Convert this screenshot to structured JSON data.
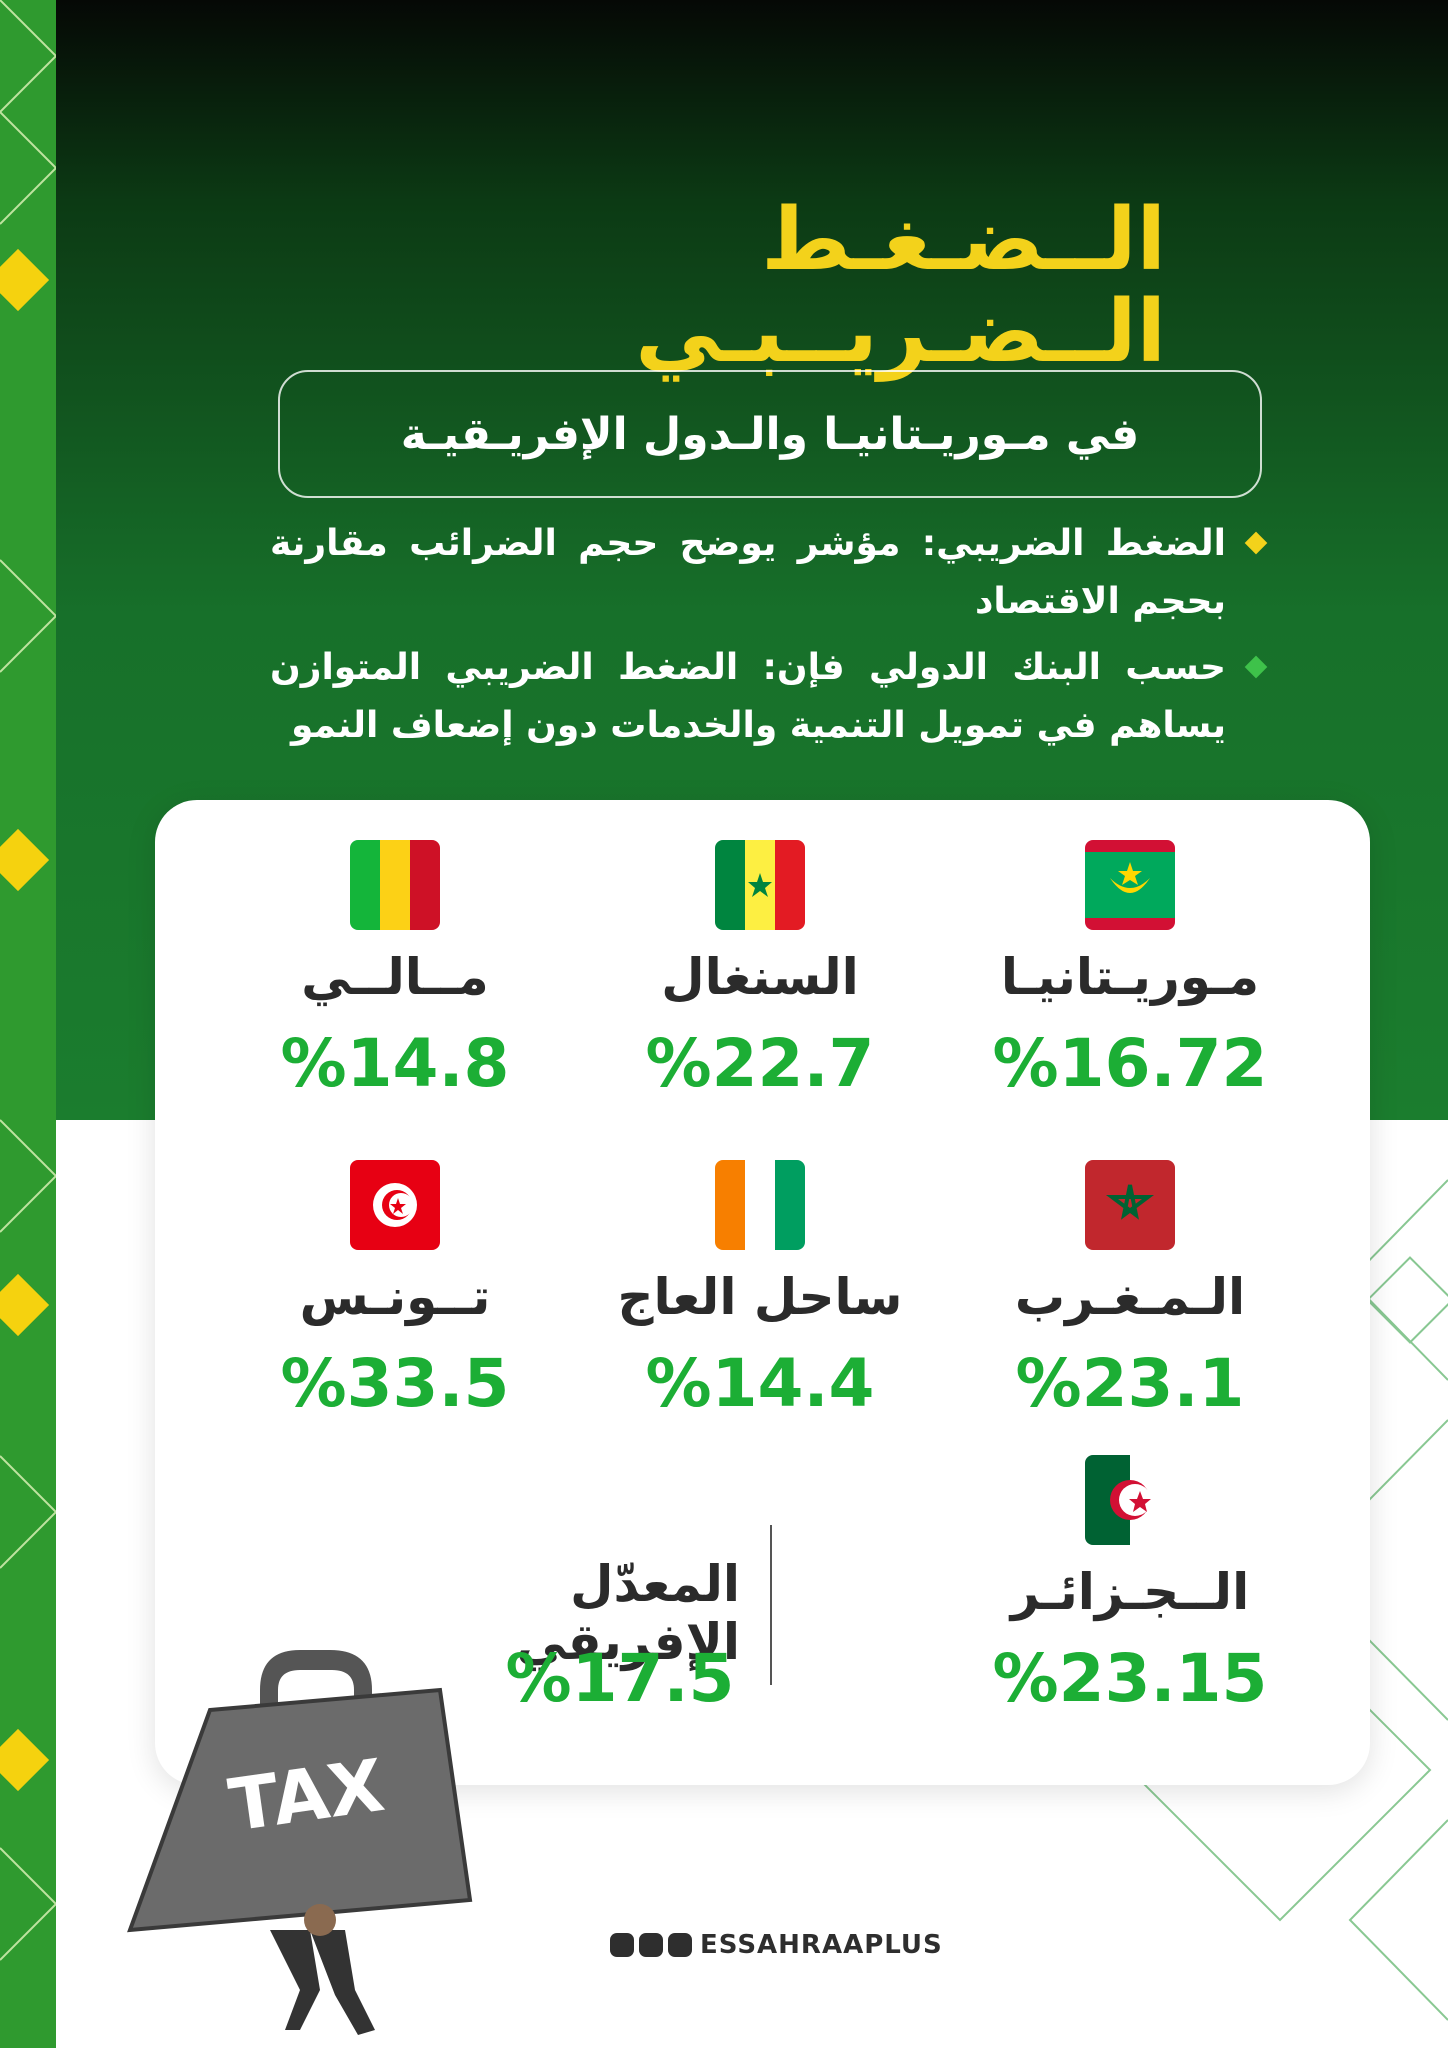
{
  "header": {
    "title_line1": "الــضـغـط",
    "title_line2": "الــضـريــبـي",
    "subtitle": "في مـوريـتانيـا والـدول الإفريـقيـة"
  },
  "bullets": [
    "الضغط الضريبي: مؤشر يوضح حجم الضرائب مقارنة بحجم الاقتصاد",
    "حسب البنك الدولي فإن: الضغط الضريبي المتوازن يساهم في تمويل التنمية والخدمات دون إضعاف النمو"
  ],
  "countries": [
    {
      "name": "مـوريـتانيـا",
      "rate": "%16.72"
    },
    {
      "name": "السنغال",
      "rate": "%22.7"
    },
    {
      "name": "مــالــي",
      "rate": "%14.8"
    },
    {
      "name": "الـمـغـرب",
      "rate": "%23.1"
    },
    {
      "name": "ساحل العاج",
      "rate": "%14.4"
    },
    {
      "name": "تــونـس",
      "rate": "%33.5"
    },
    {
      "name": "الــجـزائـر",
      "rate": "%23.15"
    }
  ],
  "average": {
    "label": "المعدّل الإفريقي",
    "rate": "%17.5"
  },
  "illustration": {
    "label": "TAX"
  },
  "footer": {
    "handle": "ESSAHRAAPLUS"
  }
}
